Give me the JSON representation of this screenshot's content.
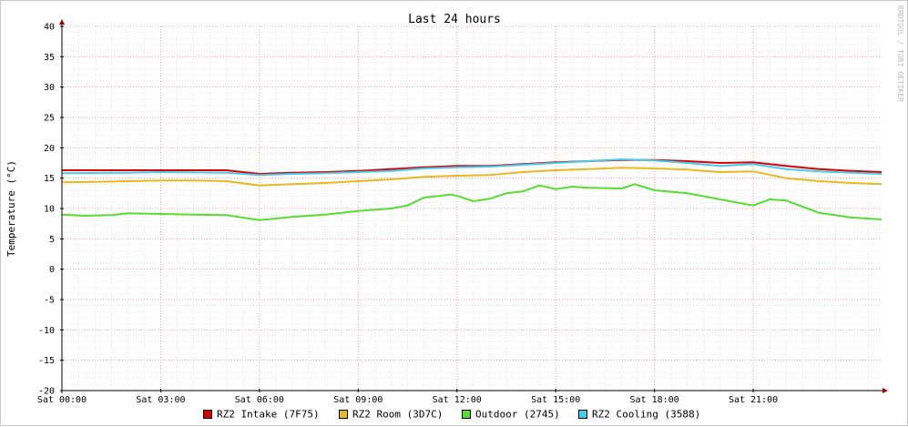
{
  "chart_data": {
    "type": "line",
    "title": "Last 24 hours",
    "ylabel": "Temperature (°C)",
    "watermark": "RRDTOOL / TOBI OETIKER",
    "ylim": [
      -20,
      40
    ],
    "y_ticks": [
      40,
      35,
      30,
      25,
      20,
      15,
      10,
      5,
      0,
      -5,
      -10,
      -15,
      -20
    ],
    "xlim": [
      0,
      24.9
    ],
    "x_ticks": [
      {
        "x": 0,
        "label": "Sat 00:00"
      },
      {
        "x": 3,
        "label": "Sat 03:00"
      },
      {
        "x": 6,
        "label": "Sat 06:00"
      },
      {
        "x": 9,
        "label": "Sat 09:00"
      },
      {
        "x": 12,
        "label": "Sat 12:00"
      },
      {
        "x": 15,
        "label": "Sat 15:00"
      },
      {
        "x": 18,
        "label": "Sat 18:00"
      },
      {
        "x": 21,
        "label": "Sat 21:00"
      }
    ],
    "grid": true,
    "legend_position": "bottom",
    "series": [
      {
        "name": "RZ2 Intake (7F75)",
        "color": "#dd0000",
        "points": [
          [
            0,
            16.3
          ],
          [
            2,
            16.3
          ],
          [
            3,
            16.3
          ],
          [
            5,
            16.3
          ],
          [
            6,
            15.7
          ],
          [
            7,
            15.9
          ],
          [
            8,
            16.0
          ],
          [
            9,
            16.2
          ],
          [
            10,
            16.5
          ],
          [
            11,
            16.8
          ],
          [
            12,
            17.0
          ],
          [
            13,
            17.0
          ],
          [
            14,
            17.3
          ],
          [
            15,
            17.6
          ],
          [
            16,
            17.8
          ],
          [
            17,
            18.0
          ],
          [
            18,
            18.0
          ],
          [
            19,
            17.8
          ],
          [
            20,
            17.5
          ],
          [
            21,
            17.6
          ],
          [
            22,
            17.0
          ],
          [
            23,
            16.5
          ],
          [
            24,
            16.2
          ],
          [
            24.9,
            16.0
          ]
        ]
      },
      {
        "name": "RZ2 Room (3D7C)",
        "color": "#e8b820",
        "points": [
          [
            0,
            14.3
          ],
          [
            1,
            14.4
          ],
          [
            2,
            14.5
          ],
          [
            3,
            14.6
          ],
          [
            4,
            14.6
          ],
          [
            5,
            14.5
          ],
          [
            6,
            13.8
          ],
          [
            7,
            14.0
          ],
          [
            8,
            14.2
          ],
          [
            9,
            14.5
          ],
          [
            10,
            14.8
          ],
          [
            11,
            15.2
          ],
          [
            12,
            15.4
          ],
          [
            13,
            15.5
          ],
          [
            14,
            16.0
          ],
          [
            15,
            16.3
          ],
          [
            16,
            16.5
          ],
          [
            17,
            16.7
          ],
          [
            18,
            16.6
          ],
          [
            19,
            16.4
          ],
          [
            20,
            16.0
          ],
          [
            21,
            16.1
          ],
          [
            22,
            15.0
          ],
          [
            23,
            14.5
          ],
          [
            24,
            14.2
          ],
          [
            24.9,
            14.0
          ]
        ]
      },
      {
        "name": "Outdoor (2745)",
        "color": "#55dd33",
        "points": [
          [
            0,
            9.0
          ],
          [
            0.7,
            8.8
          ],
          [
            1.5,
            8.9
          ],
          [
            2,
            9.2
          ],
          [
            3,
            9.1
          ],
          [
            4,
            9.0
          ],
          [
            5,
            8.9
          ],
          [
            6,
            8.1
          ],
          [
            7,
            8.6
          ],
          [
            8,
            9.0
          ],
          [
            9,
            9.6
          ],
          [
            10,
            10.0
          ],
          [
            10.5,
            10.5
          ],
          [
            11,
            11.8
          ],
          [
            11.8,
            12.3
          ],
          [
            12,
            12.1
          ],
          [
            12.5,
            11.2
          ],
          [
            13,
            11.6
          ],
          [
            13.5,
            12.5
          ],
          [
            14,
            12.8
          ],
          [
            14.5,
            13.8
          ],
          [
            15,
            13.2
          ],
          [
            15.5,
            13.6
          ],
          [
            16,
            13.4
          ],
          [
            17,
            13.3
          ],
          [
            17.4,
            14.0
          ],
          [
            18,
            13.0
          ],
          [
            19,
            12.5
          ],
          [
            20,
            11.5
          ],
          [
            21,
            10.5
          ],
          [
            21.5,
            11.5
          ],
          [
            22,
            11.3
          ],
          [
            23,
            9.3
          ],
          [
            24,
            8.5
          ],
          [
            24.9,
            8.2
          ]
        ]
      },
      {
        "name": "RZ2 Cooling (3588)",
        "color": "#44ccee",
        "points": [
          [
            0,
            15.8
          ],
          [
            2,
            15.9
          ],
          [
            3,
            16.0
          ],
          [
            5,
            15.9
          ],
          [
            6,
            15.5
          ],
          [
            7,
            15.7
          ],
          [
            8,
            15.8
          ],
          [
            9,
            16.0
          ],
          [
            10,
            16.2
          ],
          [
            11,
            16.6
          ],
          [
            12,
            16.8
          ],
          [
            13,
            16.9
          ],
          [
            14,
            17.2
          ],
          [
            15,
            17.5
          ],
          [
            16,
            17.8
          ],
          [
            17,
            18.1
          ],
          [
            18,
            17.9
          ],
          [
            19,
            17.5
          ],
          [
            20,
            17.0
          ],
          [
            21,
            17.3
          ],
          [
            22,
            16.5
          ],
          [
            23,
            16.1
          ],
          [
            24,
            15.9
          ],
          [
            24.9,
            15.7
          ]
        ]
      }
    ]
  }
}
